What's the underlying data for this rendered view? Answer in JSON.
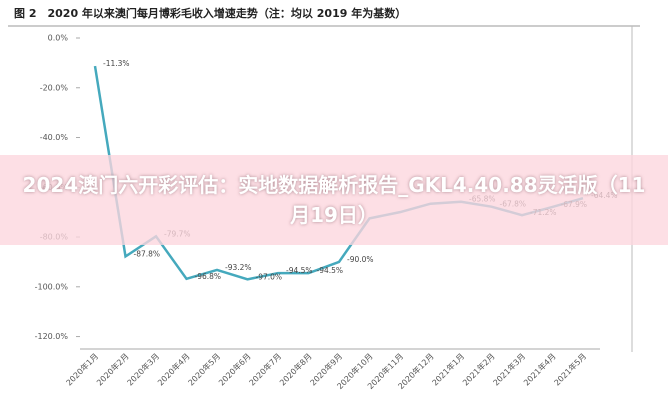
{
  "chart_data": {
    "type": "line",
    "title": "图 2　2020 年以来澳门每月博彩毛收入增速走势（注：均以 2019 年为基数）",
    "categories": [
      "2020年1月",
      "2020年2月",
      "2020年3月",
      "2020年4月",
      "2020年5月",
      "2020年6月",
      "2020年7月",
      "2020年8月",
      "2020年9月",
      "2020年10月",
      "2020年11月",
      "2020年12月",
      "2021年1月",
      "2021年2月",
      "2021年3月",
      "2021年4月",
      "2021年5月"
    ],
    "series": [
      {
        "name": "增速",
        "color": "#45a9bd",
        "values": [
          -11.3,
          -87.8,
          -79.7,
          -96.8,
          -93.2,
          -97.0,
          -94.5,
          -94.5,
          -90.0,
          -72.5,
          -70.0,
          -66.6,
          -65.8,
          -67.8,
          -71.2,
          -67.9,
          -64.4
        ],
        "value_labels": [
          "-11.3%",
          "-87.8%",
          "-79.7%",
          "-96.8%",
          "-93.2%",
          "-97.0%",
          "-94.5%",
          "-94.5%",
          "-90.0%",
          null,
          null,
          null,
          "-65.8%",
          "-67.8%",
          "-71.2%",
          "-67.9%",
          "-64.4%"
        ]
      }
    ],
    "ylim": [
      -125,
      0
    ],
    "yticks": [
      {
        "value": 0,
        "label": "0.0%"
      },
      {
        "value": -20,
        "label": "-20.0%"
      },
      {
        "value": -40,
        "label": "-40.0%"
      },
      {
        "value": -60,
        "label": "-60.0%"
      },
      {
        "value": -80,
        "label": "-80.0%"
      },
      {
        "value": -100,
        "label": "-100.0%"
      },
      {
        "value": -120,
        "label": "-120.0%"
      }
    ],
    "banner": "2024澳门六开彩评估：实地数据解析报告_GKL4.40.88灵活版（11月19日）"
  }
}
